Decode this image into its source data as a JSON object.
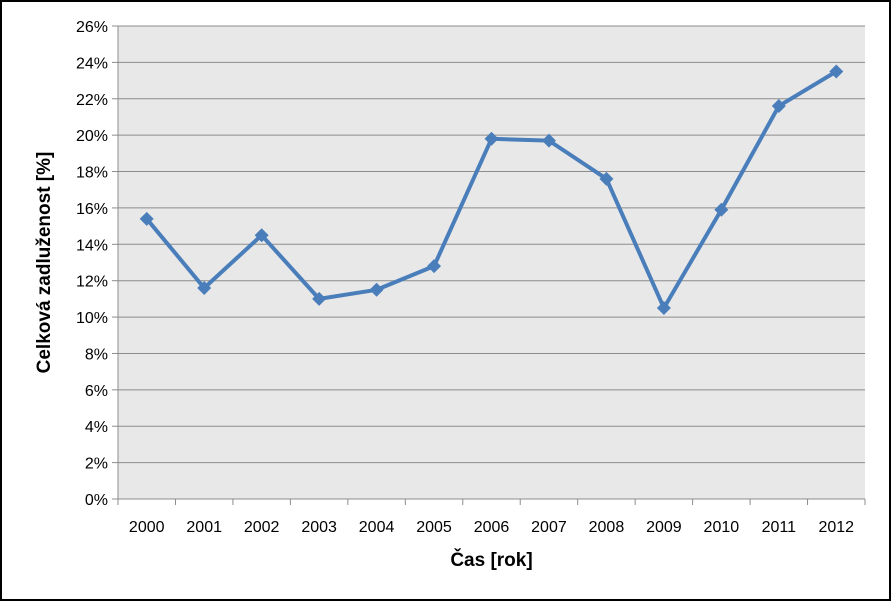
{
  "chart_data": {
    "type": "line",
    "title": "",
    "xlabel": "Čas [rok]",
    "ylabel": "Celková zadluženost [%]",
    "categories": [
      "2000",
      "2001",
      "2002",
      "2003",
      "2004",
      "2005",
      "2006",
      "2007",
      "2008",
      "2009",
      "2010",
      "2011",
      "2012"
    ],
    "series": [
      {
        "values": [
          15.4,
          11.6,
          14.5,
          11.0,
          11.5,
          12.8,
          19.8,
          19.7,
          17.6,
          10.5,
          15.9,
          21.6,
          23.5
        ],
        "color": "#4a7ebb",
        "marker": "diamond"
      }
    ],
    "ylim": [
      0,
      26
    ],
    "ytick_step": 2,
    "ytick_labels": [
      "0%",
      "2%",
      "4%",
      "6%",
      "8%",
      "10%",
      "12%",
      "14%",
      "16%",
      "18%",
      "20%",
      "22%",
      "24%",
      "26%"
    ],
    "grid": true,
    "plot_background": "#e8e8e8",
    "gridline_color": "#8c8c8c",
    "legend": "none"
  }
}
